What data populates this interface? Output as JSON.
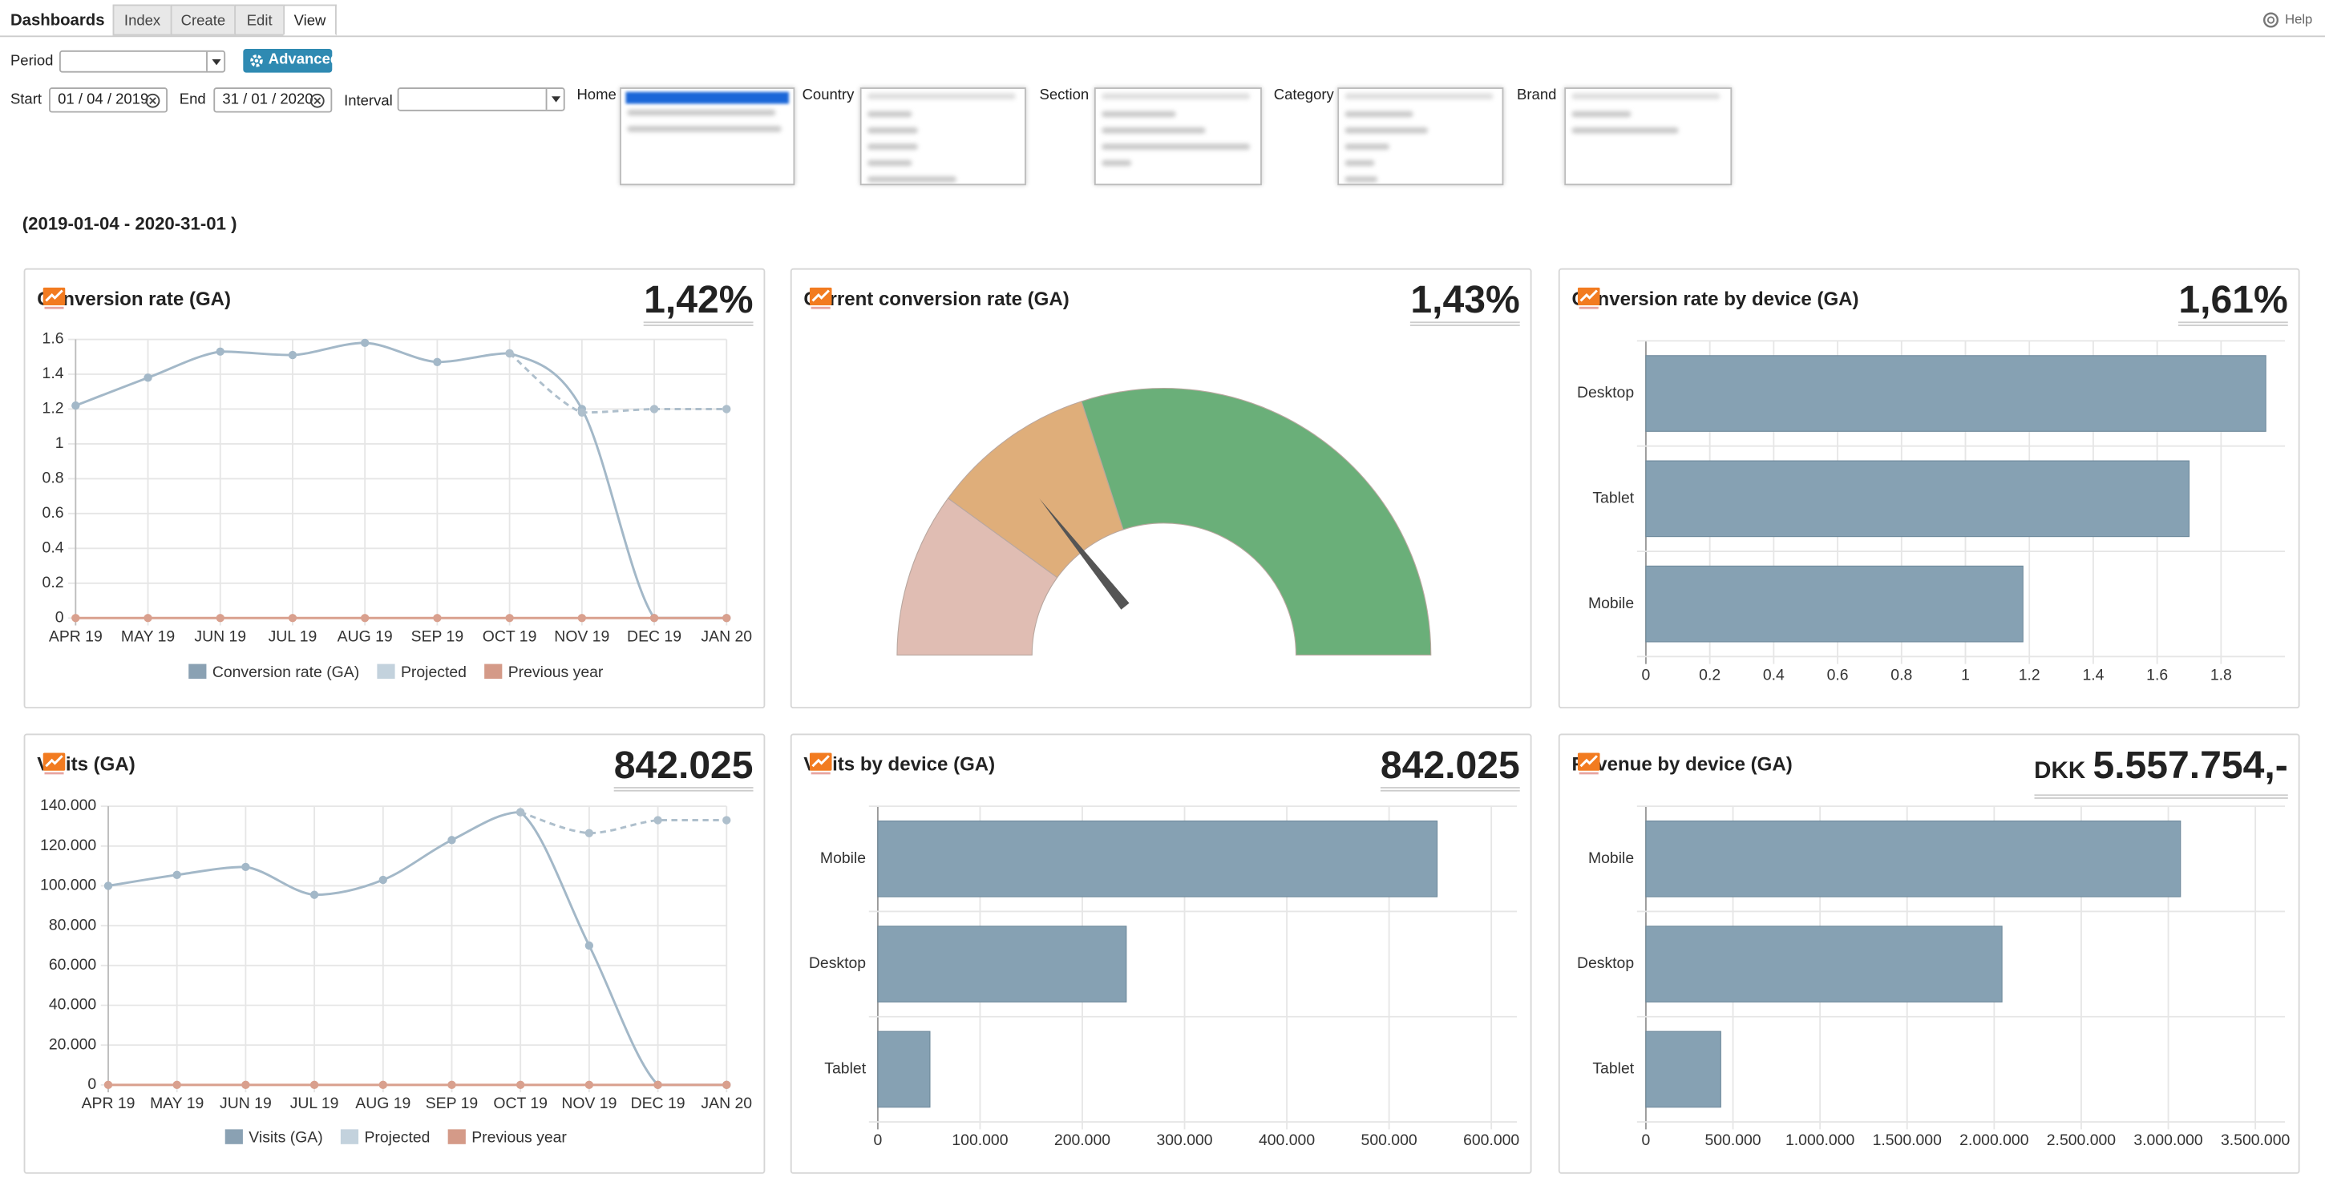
{
  "header": {
    "title": "Dashboards",
    "tabs": [
      "Index",
      "Create",
      "Edit",
      "View"
    ],
    "active_tab": "View",
    "help": "Help"
  },
  "filters": {
    "period": "Period",
    "advanced": "Advanced",
    "start": "Start",
    "start_value": "01 / 04 / 2019",
    "end": "End",
    "end_value": "31 / 01 / 2020",
    "interval": "Interval",
    "lists": [
      "Home",
      "Country",
      "Section",
      "Category",
      "Brand"
    ]
  },
  "date_range": "(2019-01-04 - 2020-31-01 )",
  "chart_data": [
    {
      "type": "line",
      "title": "Conversion rate (GA)",
      "kpi": "1,42%",
      "categories": [
        "APR 19",
        "MAY 19",
        "JUN 19",
        "JUL 19",
        "AUG 19",
        "SEP 19",
        "OCT 19",
        "NOV 19",
        "DEC 19",
        "JAN 20"
      ],
      "series": [
        {
          "name": "Conversion rate (GA)",
          "color": "#a3b8c8",
          "legend_color": "#8aa1b3",
          "values": [
            1.22,
            1.38,
            1.53,
            1.51,
            1.58,
            1.47,
            1.52,
            1.2,
            0,
            0
          ]
        },
        {
          "name": "Projected",
          "color": "#aebfcc",
          "legend_color": "#c3d2dd",
          "dash": true,
          "values": [
            null,
            null,
            null,
            null,
            null,
            null,
            1.52,
            1.18,
            1.2,
            1.2
          ]
        },
        {
          "name": "Previous year",
          "color": "#d9a08e",
          "legend_color": "#d49a88",
          "values": [
            0,
            0,
            0,
            0,
            0,
            0,
            0,
            0,
            0,
            0
          ]
        }
      ],
      "ylim": [
        0,
        1.6
      ],
      "yticks": [
        0,
        0.2,
        0.4,
        0.6,
        0.8,
        1,
        1.2,
        1.4,
        1.6
      ],
      "grid": true,
      "legend": "bottom"
    },
    {
      "type": "gauge",
      "title": "Current conversion rate (GA)",
      "kpi": "1,43%",
      "value": 1.43,
      "lim": [
        0,
        5
      ],
      "bands": [
        {
          "from": 0,
          "to": 1,
          "color": "#e0bdb3"
        },
        {
          "from": 1,
          "to": 2,
          "color": "#dfae7a"
        },
        {
          "from": 2,
          "to": 5,
          "color": "#6aaf79"
        }
      ]
    },
    {
      "type": "hbar",
      "title": "Conversion rate by device (GA)",
      "kpi": "1,61%",
      "categories": [
        "Desktop",
        "Tablet",
        "Mobile"
      ],
      "values": [
        1.94,
        1.7,
        1.18
      ],
      "color": "#86a1b3",
      "xlim": [
        0,
        2
      ],
      "xticks": [
        0,
        0.2,
        0.4,
        0.6,
        0.8,
        1,
        1.2,
        1.4,
        1.6,
        1.8
      ],
      "grid": true
    },
    {
      "type": "line",
      "title": "Visits (GA)",
      "kpi": "842.025",
      "categories": [
        "APR 19",
        "MAY 19",
        "JUN 19",
        "JUL 19",
        "AUG 19",
        "SEP 19",
        "OCT 19",
        "NOV 19",
        "DEC 19",
        "JAN 20"
      ],
      "series": [
        {
          "name": "Visits (GA)",
          "color": "#a3b8c8",
          "legend_color": "#8aa1b3",
          "values": [
            100000,
            105500,
            109500,
            95500,
            103000,
            123000,
            137000,
            70000,
            0,
            0
          ]
        },
        {
          "name": "Projected",
          "color": "#aebfcc",
          "legend_color": "#c3d2dd",
          "dash": true,
          "values": [
            null,
            null,
            null,
            null,
            null,
            null,
            137000,
            126500,
            133000,
            133000
          ]
        },
        {
          "name": "Previous year",
          "color": "#d9a08e",
          "legend_color": "#d49a88",
          "values": [
            0,
            0,
            0,
            0,
            0,
            0,
            0,
            0,
            0,
            0
          ]
        }
      ],
      "ylim": [
        0,
        140000
      ],
      "yticks": [
        0,
        {
          "value": 20000,
          "label": "20.000"
        },
        {
          "value": 40000,
          "label": "40.000"
        },
        {
          "value": 60000,
          "label": "60.000"
        },
        {
          "value": 80000,
          "label": "80.000"
        },
        {
          "value": 100000,
          "label": "100.000"
        },
        {
          "value": 120000,
          "label": "120.000"
        },
        {
          "value": 140000,
          "label": "140.000"
        }
      ],
      "grid": true,
      "legend": "bottom"
    },
    {
      "type": "hbar",
      "title": "Visits by device (GA)",
      "kpi": "842.025",
      "categories": [
        "Mobile",
        "Desktop",
        "Tablet"
      ],
      "values": [
        547000,
        243000,
        51000
      ],
      "color": "#86a1b3",
      "xlim": [
        0,
        625000
      ],
      "xticks": [
        0,
        {
          "value": 100000,
          "label": "100.000"
        },
        {
          "value": 200000,
          "label": "200.000"
        },
        {
          "value": 300000,
          "label": "300.000"
        },
        {
          "value": 400000,
          "label": "400.000"
        },
        {
          "value": 500000,
          "label": "500.000"
        },
        {
          "value": 600000,
          "label": "600.000"
        }
      ],
      "grid": true
    },
    {
      "type": "hbar",
      "title": "Revenue by device (GA)",
      "kpi_prefix": "DKK",
      "kpi": "5.557.754,-",
      "categories": [
        "Mobile",
        "Desktop",
        "Tablet"
      ],
      "values": [
        3070000,
        2045000,
        430000
      ],
      "color": "#86a1b3",
      "xlim": [
        0,
        3670000
      ],
      "xticks": [
        0,
        {
          "value": 500000,
          "label": "500.000"
        },
        {
          "value": 1000000,
          "label": "1.000.000"
        },
        {
          "value": 1500000,
          "label": "1.500.000"
        },
        {
          "value": 2000000,
          "label": "2.000.000"
        },
        {
          "value": 2500000,
          "label": "2.500.000"
        },
        {
          "value": 3000000,
          "label": "3.000.000"
        },
        {
          "value": 3500000,
          "label": "3.500.000"
        }
      ],
      "grid": true
    }
  ]
}
